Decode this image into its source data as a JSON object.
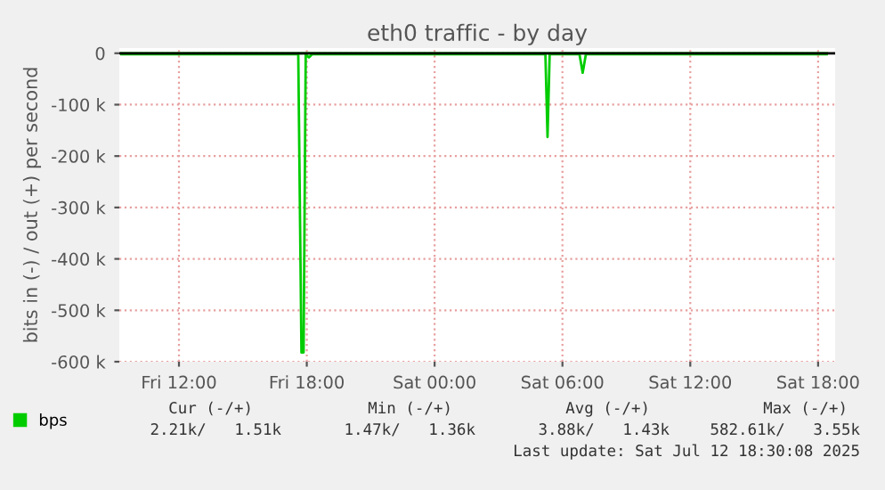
{
  "chart_data": {
    "type": "line",
    "title": "eth0 traffic - by day",
    "ylabel": "bits in (-) / out (+) per second",
    "series": [
      {
        "name": "bps",
        "color": "#00cc00",
        "x": [
          "2025-07-11T09:18",
          "2025-07-11T17:36",
          "2025-07-11T17:45",
          "2025-07-11T17:51",
          "2025-07-11T17:57",
          "2025-07-11T18:06",
          "2025-07-11T18:15",
          "2025-07-12T05:12",
          "2025-07-12T05:18",
          "2025-07-12T05:24",
          "2025-07-12T06:48",
          "2025-07-12T06:57",
          "2025-07-12T07:06",
          "2025-07-12T18:24"
        ],
        "values": [
          -2000,
          -2000,
          -582000,
          -582000,
          -2000,
          -8000,
          -2000,
          -2000,
          -163000,
          -2000,
          -2000,
          -38000,
          -2000,
          -2000
        ]
      },
      {
        "color": "#00cc00",
        "x": [
          "2025-07-11T09:18",
          "2025-07-12T18:24"
        ],
        "values": [
          0,
          0
        ]
      }
    ],
    "xlim": [
      "2025-07-11T09:12",
      "2025-07-12T18:48"
    ],
    "xticks": [
      {
        "value": "2025-07-11T12:00",
        "label": "Fri 12:00"
      },
      {
        "value": "2025-07-11T18:00",
        "label": "Fri 18:00"
      },
      {
        "value": "2025-07-12T00:00",
        "label": "Sat 00:00"
      },
      {
        "value": "2025-07-12T06:00",
        "label": "Sat 06:00"
      },
      {
        "value": "2025-07-12T12:00",
        "label": "Sat 12:00"
      },
      {
        "value": "2025-07-12T18:00",
        "label": "Sat 18:00"
      }
    ],
    "ylim": [
      -600000,
      10000
    ],
    "yticks": [
      {
        "value": -600000,
        "label": "-600 k"
      },
      {
        "value": -500000,
        "label": "-500 k"
      },
      {
        "value": -400000,
        "label": "-400 k"
      },
      {
        "value": -300000,
        "label": "-300 k"
      },
      {
        "value": -200000,
        "label": "-200 k"
      },
      {
        "value": -100000,
        "label": "-100 k"
      },
      0
    ],
    "grid": true,
    "legend": "bottom left",
    "annotations": [
      "Cur (-/+)",
      "Min (-/+)",
      "Avg (-/+)",
      "Max (-/+)",
      "2.21k/   1.51k",
      "1.47k/   1.36k",
      "3.88k/   1.43k",
      "582.61k/   3.55k",
      "Last update: Sat Jul 12 18:30:08 2025"
    ]
  }
}
